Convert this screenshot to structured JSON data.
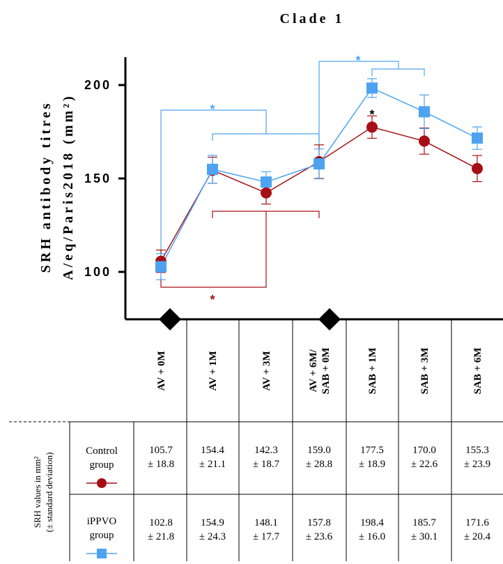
{
  "chart_data": {
    "type": "line",
    "title": "Clade 1",
    "ylabel_line1": "SRH antibody titres",
    "ylabel_line2": "A/eq/Paris2018 (mm²)",
    "yticks": [
      100,
      150,
      200
    ],
    "ylim": [
      85,
      211
    ],
    "categories": [
      "AV + 0M",
      "AV + 1M",
      "AV + 3M",
      "AV + 6M/ SAB + 0M",
      "SAB + 1M",
      "SAB + 3M",
      "SAB + 6M"
    ],
    "category_lines": [
      [
        "AV + 0M"
      ],
      [
        "AV + 1M"
      ],
      [
        "AV + 3M"
      ],
      [
        "AV + 6M/",
        "SAB + 0M"
      ],
      [
        "SAB + 1M"
      ],
      [
        "SAB + 3M"
      ],
      [
        "SAB + 6M"
      ]
    ],
    "series": [
      {
        "name": "Control group",
        "color": "#a50f15",
        "marker": "circle",
        "values": [
          105.7,
          154.4,
          142.3,
          159.0,
          177.5,
          170.0,
          155.3
        ],
        "errors": [
          6,
          7,
          6,
          9,
          6,
          7,
          7
        ],
        "sd_labels": [
          "± 18.8",
          "± 21.1",
          "± 18.7",
          "± 28.8",
          "± 18.9",
          "± 22.6",
          "± 23.9"
        ]
      },
      {
        "name": "iPPVO group",
        "color": "#4da3f0",
        "marker": "square",
        "values": [
          102.8,
          154.9,
          148.1,
          157.8,
          198.4,
          185.7,
          171.6
        ],
        "errors": [
          7,
          7.5,
          5.5,
          8,
          5,
          9,
          6
        ],
        "sd_labels": [
          "± 21.8",
          "± 24.3",
          "± 17.7",
          "± 23.6",
          "± 16.0",
          "± 30.1",
          "± 20.4"
        ]
      }
    ],
    "vaccination_markers": [
      "AV + 0M",
      "AV + 6M/ SAB + 0M"
    ],
    "significance_symbol": "*",
    "significance_label_index": 4,
    "legend": "table-below",
    "grid": false
  },
  "table": {
    "side_label_line1": "SRH values in mm²",
    "side_label_line2": "(± standard deviation)",
    "control_label_line1": "Control",
    "control_label_line2": "group",
    "ippvo_label_line1": "iPPVO",
    "ippvo_label_line2": "group"
  }
}
